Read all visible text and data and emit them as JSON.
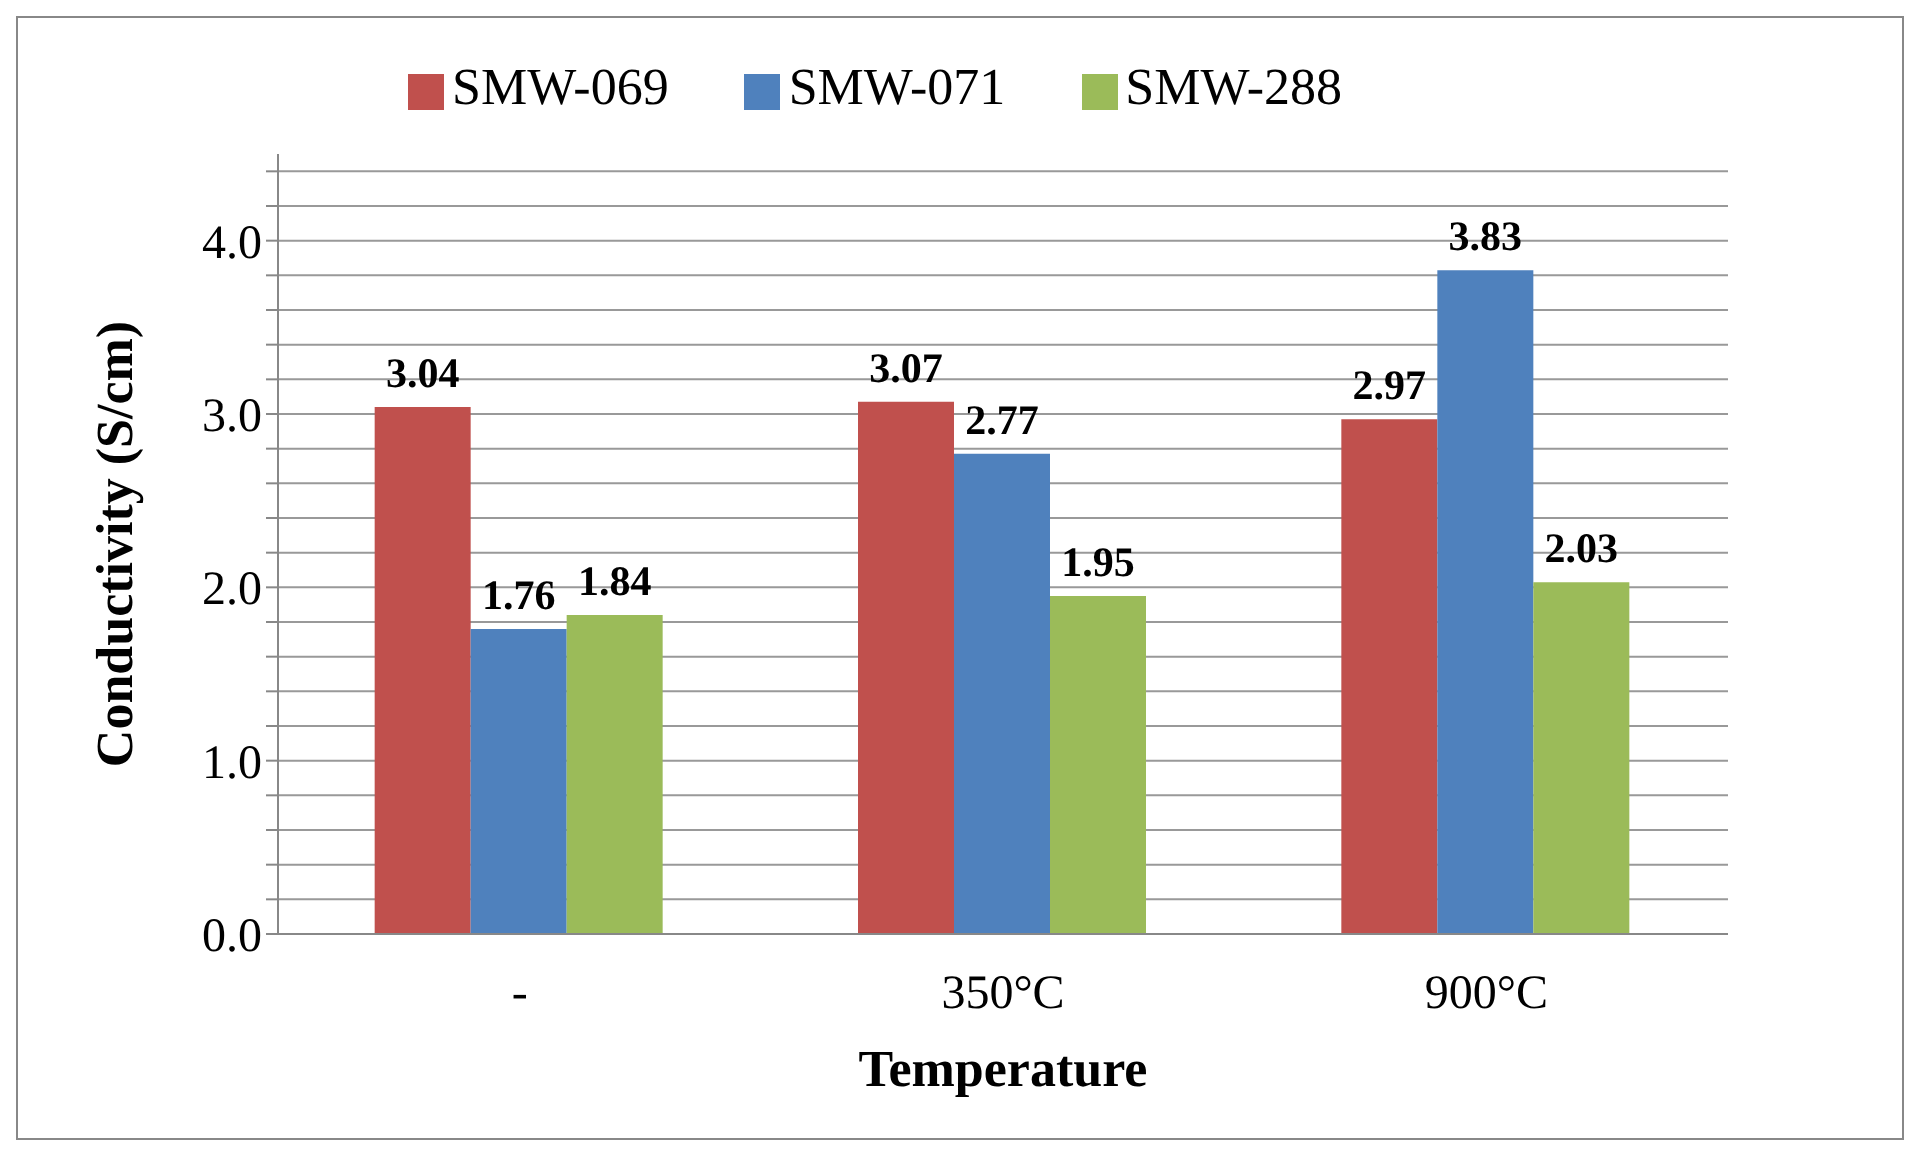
{
  "chart_data": {
    "type": "bar",
    "xlabel": "Temperature",
    "ylabel": "Conductivity (S/cm)",
    "categories": [
      "-",
      "350°C",
      "900°C"
    ],
    "series": [
      {
        "name": "SMW-069",
        "color": "#c0504d",
        "values": [
          3.04,
          3.07,
          2.97
        ]
      },
      {
        "name": "SMW-071",
        "color": "#4f81bd",
        "values": [
          1.76,
          2.77,
          3.83
        ]
      },
      {
        "name": "SMW-288",
        "color": "#9bbb59",
        "values": [
          1.84,
          1.95,
          2.03
        ]
      }
    ],
    "ylim": [
      0,
      4.5
    ],
    "yticks": [
      {
        "value": 0,
        "label": "0.0"
      },
      {
        "value": 0.2,
        "label": null
      },
      {
        "value": 0.4,
        "label": null
      },
      {
        "value": 0.6,
        "label": null
      },
      {
        "value": 0.8,
        "label": null
      },
      {
        "value": 1,
        "label": "1.0"
      },
      {
        "value": 1.2,
        "label": null
      },
      {
        "value": 1.4,
        "label": null
      },
      {
        "value": 1.6,
        "label": null
      },
      {
        "value": 1.8,
        "label": null
      },
      {
        "value": 2,
        "label": "2.0"
      },
      {
        "value": 2.2,
        "label": null
      },
      {
        "value": 2.4,
        "label": null
      },
      {
        "value": 2.6,
        "label": null
      },
      {
        "value": 2.8,
        "label": null
      },
      {
        "value": 3,
        "label": "3.0"
      },
      {
        "value": 3.2,
        "label": null
      },
      {
        "value": 3.4,
        "label": null
      },
      {
        "value": 3.6,
        "label": null
      },
      {
        "value": 3.8,
        "label": null
      },
      {
        "value": 4,
        "label": "4.0"
      },
      {
        "value": 4.2,
        "label": null
      },
      {
        "value": 4.4,
        "label": null
      }
    ],
    "grid": "y",
    "legend": "top",
    "data_labels": true
  }
}
